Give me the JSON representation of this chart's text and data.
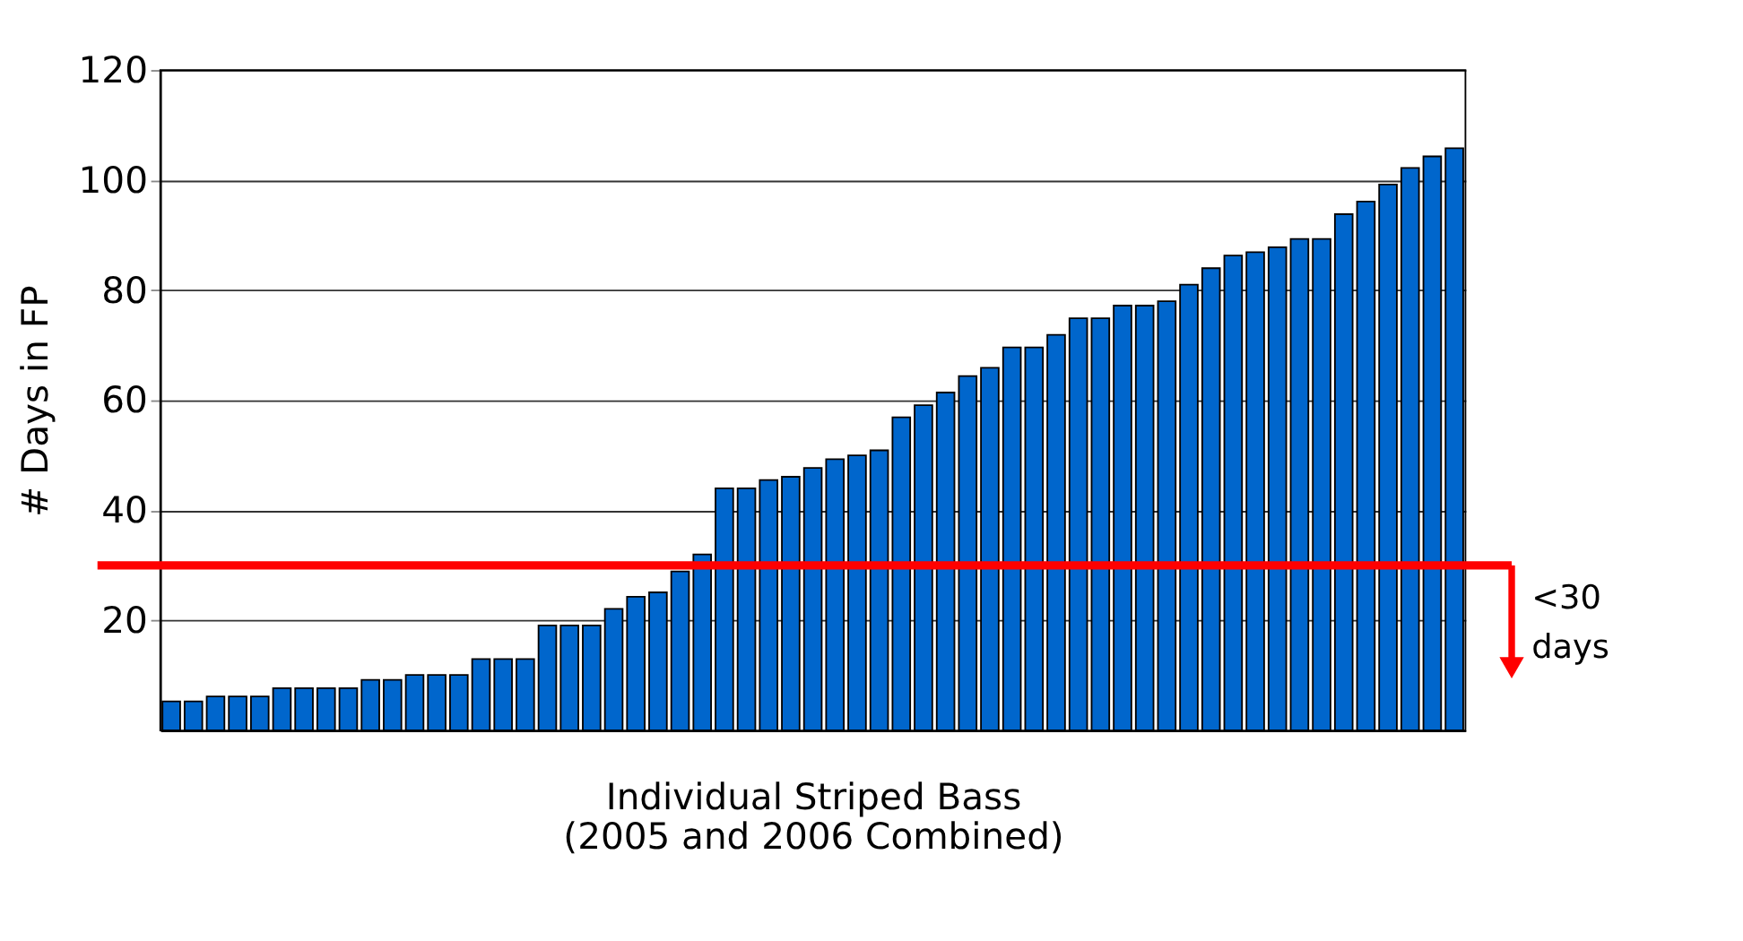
{
  "chart_data": {
    "type": "bar",
    "xlabel": "Individual Striped Bass\n(2005 and 2006 Combined)",
    "ylabel": "# Days in FP",
    "categories": [
      null,
      null,
      null,
      null,
      null,
      null,
      null,
      null,
      null,
      null,
      null,
      null,
      null,
      null,
      null,
      null,
      null,
      null,
      null,
      null,
      null,
      null,
      null,
      null,
      null,
      null,
      null,
      null,
      null,
      null,
      null,
      null,
      null,
      null,
      null,
      null,
      null,
      null,
      null,
      null,
      null,
      null,
      null,
      null,
      null,
      null,
      null,
      null,
      null,
      null,
      null,
      null,
      null,
      null,
      null,
      null,
      null,
      null,
      null
    ],
    "values": [
      5.3,
      5.3,
      6.2,
      6.2,
      6.2,
      7.7,
      7.7,
      7.7,
      7.7,
      9.2,
      9.2,
      10.1,
      10.1,
      10.1,
      13,
      13,
      13,
      19.1,
      19.1,
      19.1,
      22.1,
      24.3,
      25.1,
      28.9,
      32,
      44,
      44,
      45.5,
      46.1,
      47.7,
      49.3,
      50,
      50.9,
      56.9,
      59.1,
      61.4,
      64.4,
      65.9,
      69.6,
      69.6,
      71.9,
      74.9,
      74.9,
      77.2,
      77.2,
      78,
      81,
      84,
      86.3,
      86.9,
      87.8,
      89.3,
      89.3,
      93.8,
      96.1,
      99.2,
      102.2,
      104.3,
      105.8
    ],
    "color": "#0066cc",
    "ylim": [
      0,
      120
    ],
    "yticks": [
      20,
      40,
      60,
      80,
      100,
      120
    ],
    "grid": "y",
    "ref_lines": [
      {
        "axis": "y",
        "value": 30,
        "label": "<30 days",
        "color": "#ff0000"
      }
    ]
  }
}
